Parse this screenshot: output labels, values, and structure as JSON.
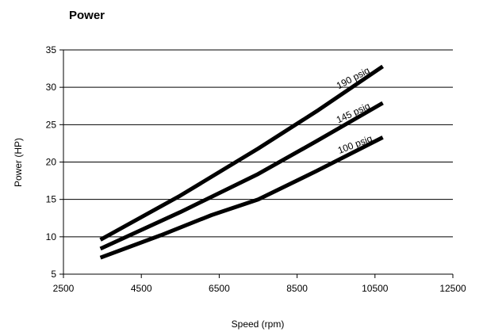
{
  "chart_data": {
    "type": "line",
    "title": "Power",
    "xlabel": "Speed (rpm)",
    "ylabel": "Power (HP)",
    "xlim": [
      2500,
      12500
    ],
    "ylim": [
      5,
      35
    ],
    "xticks": [
      2500,
      4500,
      6500,
      8500,
      10500,
      12500
    ],
    "yticks": [
      5,
      10,
      15,
      20,
      25,
      30,
      35
    ],
    "grid": "horizontal",
    "line_color": "#000000",
    "series": [
      {
        "name": "190 psig",
        "x": [
          3450,
          5500,
          7500,
          9000,
          10700
        ],
        "y": [
          9.6,
          15.5,
          21.8,
          26.8,
          32.8
        ]
      },
      {
        "name": "145 psig",
        "x": [
          3450,
          5500,
          7500,
          9000,
          10700
        ],
        "y": [
          8.4,
          13.3,
          18.4,
          22.8,
          27.9
        ]
      },
      {
        "name": "100 psig",
        "x": [
          3450,
          5000,
          6300,
          7500,
          9000,
          10700
        ],
        "y": [
          7.2,
          10.2,
          12.9,
          15.0,
          18.8,
          23.3
        ]
      }
    ]
  }
}
